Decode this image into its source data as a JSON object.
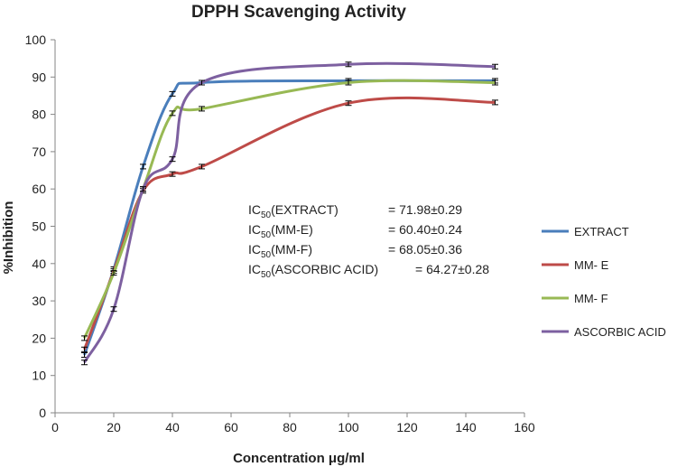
{
  "chart_data": {
    "type": "line",
    "title": "DPPH Scavenging Activity",
    "xlabel": "Concentration μg/ml",
    "ylabel": "%Inhibition",
    "xlim": [
      0,
      160
    ],
    "ylim": [
      0,
      100
    ],
    "x_ticks": [
      0,
      20,
      40,
      60,
      80,
      100,
      120,
      140,
      160
    ],
    "y_ticks": [
      0,
      10,
      20,
      30,
      40,
      50,
      60,
      70,
      80,
      90,
      100
    ],
    "grid": false,
    "legend_position": "right",
    "series": [
      {
        "name": "EXTRACT",
        "color": "#4a7ebb",
        "x": [
          10,
          20,
          30,
          40,
          50,
          100,
          150
        ],
        "y": [
          15.5,
          38.5,
          66,
          85.5,
          88.5,
          89,
          89
        ]
      },
      {
        "name": "MM- E",
        "color": "#be4b48",
        "x": [
          10,
          20,
          30,
          40,
          50,
          100,
          150
        ],
        "y": [
          17,
          38,
          59.5,
          64,
          66,
          83,
          83.2
        ]
      },
      {
        "name": "MM- F",
        "color": "#98b954",
        "x": [
          10,
          20,
          30,
          40,
          50,
          100,
          150
        ],
        "y": [
          20,
          37.5,
          60,
          80.3,
          81.5,
          88.5,
          88.5
        ]
      },
      {
        "name": "ASCORBIC ACID",
        "color": "#7d60a0",
        "x": [
          10,
          20,
          30,
          40,
          50,
          100,
          150
        ],
        "y": [
          13.5,
          27.8,
          60,
          68,
          88.5,
          93.4,
          92.8
        ]
      }
    ],
    "annotations": [
      {
        "label_main": "IC",
        "label_sub": "50",
        "label_rest": "(EXTRACT)",
        "value": "= 71.98±0.29"
      },
      {
        "label_main": "IC",
        "label_sub": "50",
        "label_rest": "(MM-E)",
        "value": "= 60.40±0.24"
      },
      {
        "label_main": "IC",
        "label_sub": "50",
        "label_rest": "(MM-F)",
        "value": "= 68.05±0.36"
      },
      {
        "label_main": "IC",
        "label_sub": "50",
        "label_rest": "(ASCORBIC ACID)",
        "value": "= 64.27±0.28"
      }
    ]
  }
}
